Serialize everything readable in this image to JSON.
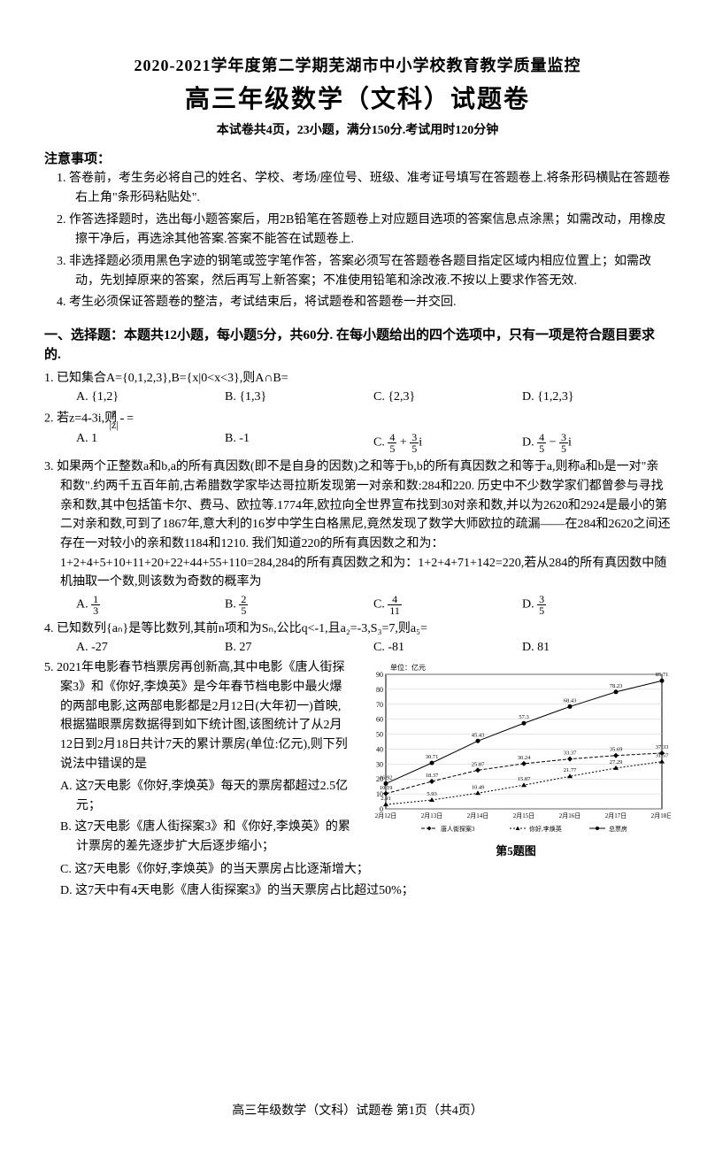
{
  "header": {
    "title_line1": "2020-2021学年度第二学期芜湖市中小学校教育教学质量监控",
    "title_line2": "高三年级数学（文科）试题卷",
    "subtitle": "本试卷共4页，23小题，满分150分.考试用时120分钟"
  },
  "notice": {
    "header": "注意事项：",
    "items": [
      "1. 答卷前，考生务必将自己的姓名、学校、考场/座位号、班级、准考证号填写在答题卷上.将条形码横贴在答题卷右上角\"条形码粘贴处\".",
      "2. 作答选择题时，选出每小题答案后，用2B铅笔在答题卷上对应题目选项的答案信息点涂黑；如需改动，用橡皮擦干净后，再选涂其他答案.答案不能答在试题卷上.",
      "3. 非选择题必须用黑色字迹的钢笔或签字笔作答，答案必须写在答题卷各题目指定区域内相应位置上；如需改动，先划掉原来的答案，然后再写上新答案；不准使用铅笔和涂改液.不按以上要求作答无效.",
      "4. 考生必须保证答题卷的整洁，考试结束后，将试题卷和答题卷一并交回."
    ]
  },
  "section1": {
    "header": "一、选择题：本题共12小题，每小题5分，共60分. 在每小题给出的四个选项中，只有一项是符合题目要求的."
  },
  "q1": {
    "text": "1. 已知集合A={0,1,2,3},B={x|0<x<3},则A∩B=",
    "options": [
      "A. {1,2}",
      "B. {1,3}",
      "C. {2,3}",
      "D. {1,2,3}"
    ]
  },
  "q2": {
    "text_prefix": "2. 若z=4-3i,则",
    "text_frac_num": "z̄",
    "text_frac_den": "|z|",
    "text_suffix": " =",
    "opt_a": "A. 1",
    "opt_b": "B. -1",
    "opt_c_prefix": "C. ",
    "opt_c_f1n": "4",
    "opt_c_f1d": "5",
    "opt_c_mid": " + ",
    "opt_c_f2n": "3",
    "opt_c_f2d": "5",
    "opt_c_suffix": "i",
    "opt_d_prefix": "D. ",
    "opt_d_f1n": "4",
    "opt_d_f1d": "5",
    "opt_d_mid": " − ",
    "opt_d_f2n": "3",
    "opt_d_f2d": "5",
    "opt_d_suffix": "i"
  },
  "q3": {
    "text": "3. 如果两个正整数a和b,a的所有真因数(即不是自身的因数)之和等于b,b的所有真因数之和等于a,则称a和b是一对\"亲和数\".约两千五百年前,古希腊数学家毕达哥拉斯发现第一对亲和数:284和220. 历史中不少数学家们都曾参与寻找亲和数,其中包括笛卡尔、费马、欧拉等.1774年,欧拉向全世界宣布找到30对亲和数,并以为2620和2924是最小的第二对亲和数,可到了1867年,意大利的16岁中学生白格黑尼,竟然发现了数学大师欧拉的疏漏——在284和2620之间还存在一对较小的亲和数1184和1210. 我们知道220的所有真因数之和为：1+2+4+5+10+11+20+22+44+55+110=284,284的所有真因数之和为：1+2+4+71+142=220,若从284的所有真因数中随机抽取一个数,则该数为奇数的概率为",
    "opt_a_prefix": "A. ",
    "opt_a_n": "1",
    "opt_a_d": "3",
    "opt_b_prefix": "B. ",
    "opt_b_n": "2",
    "opt_b_d": "5",
    "opt_c_prefix": "C. ",
    "opt_c_n": "4",
    "opt_c_d": "11",
    "opt_d_prefix": "D. ",
    "opt_d_n": "3",
    "opt_d_d": "5"
  },
  "q4": {
    "text": "4. 已知数列{aₙ}是等比数列,其前n项和为Sₙ,公比q<-1,且a₂=-3,S₃=7,则a₅=",
    "options": [
      "A. -27",
      "B. 27",
      "C. -81",
      "D. 81"
    ]
  },
  "q5": {
    "text": "5. 2021年电影春节档票房再创新高,其中电影《唐人街探案3》和《你好,李焕英》是今年春节档电影中最火爆的两部电影,这两部电影都是2月12日(大年初一)首映,根据猫眼票房数据得到如下统计图,该图统计了从2月12日到2月18日共计7天的累计票房(单位:亿元),则下列说法中错误的是",
    "sub_options": [
      "A. 这7天电影《你好,李焕英》每天的票房都超过2.5亿元；",
      "B. 这7天电影《唐人街探案3》和《你好,李焕英》的累计票房的差先逐步扩大后逐步缩小；",
      "C. 这7天电影《你好,李焕英》的当天票房占比逐渐增大；",
      "D. 这7天中有4天电影《唐人街探案3》的当天票房占比超过50%；"
    ]
  },
  "chart": {
    "caption": "第5题图",
    "y_max": 90,
    "y_step": 10,
    "y_unit": "单位：亿元",
    "x_labels": [
      "2月12日",
      "2月13日",
      "2月14日",
      "2月15日",
      "2月16日",
      "2月17日",
      "2月18日"
    ],
    "legend": [
      "唐人街探案3",
      "你好,李焕英",
      "总票房"
    ],
    "series1_label": "唐人街探案3",
    "series1_values": [
      10.19,
      18.37,
      25.87,
      30.24,
      33.37,
      35.69,
      37.33
    ],
    "series2_label": "你好,李焕英",
    "series2_values": [
      2.91,
      5.93,
      10.49,
      15.87,
      21.77,
      27.29,
      31.57
    ],
    "series3_label": "总票房",
    "series3_values": [
      16.92,
      30.71,
      45.43,
      57.3,
      68.43,
      78.23,
      85.71
    ],
    "colors": {
      "series1": "#000000",
      "series2": "#000000",
      "series3": "#000000",
      "grid": "#cccccc",
      "axis": "#000000",
      "background": "#ffffff"
    },
    "marker_styles": {
      "series1": "diamond",
      "series2": "triangle",
      "series3": "circle"
    },
    "line_styles": {
      "series1": "dashed",
      "series2": "dotted",
      "series3": "solid"
    },
    "font_size": 8
  },
  "footer": "高三年级数学（文科）试题卷 第1页（共4页）"
}
